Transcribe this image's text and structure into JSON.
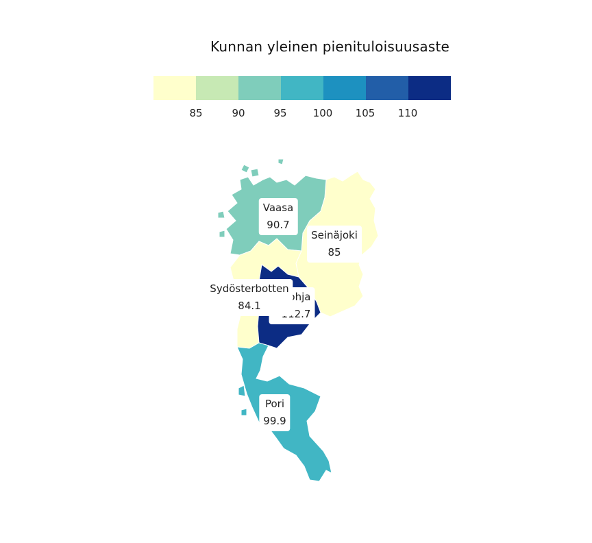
{
  "legend": {
    "title": "Kunnan yleinen pienituloisuusaste",
    "colors": [
      "#ffffcc",
      "#c7e9b4",
      "#7fcdbb",
      "#41b6c4",
      "#1d91c0",
      "#225ea8",
      "#0c2c84"
    ],
    "ticks": [
      "85",
      "90",
      "95",
      "100",
      "105",
      "110"
    ]
  },
  "regions": [
    {
      "name": "Vaasa",
      "value": "90.7",
      "color": "#7fcdbb"
    },
    {
      "name": "Seinäjoki",
      "value": "85",
      "color": "#ffffcc"
    },
    {
      "name": "Sydösterbotten",
      "value": "84.1",
      "color": "#ffffcc"
    },
    {
      "name": "Kauhajoki",
      "name_visible": "ohja",
      "value": "112.7",
      "value_visible": "112.7",
      "color": "#0c2c84"
    },
    {
      "name": "Pori",
      "value": "99.9",
      "color": "#41b6c4"
    }
  ]
}
